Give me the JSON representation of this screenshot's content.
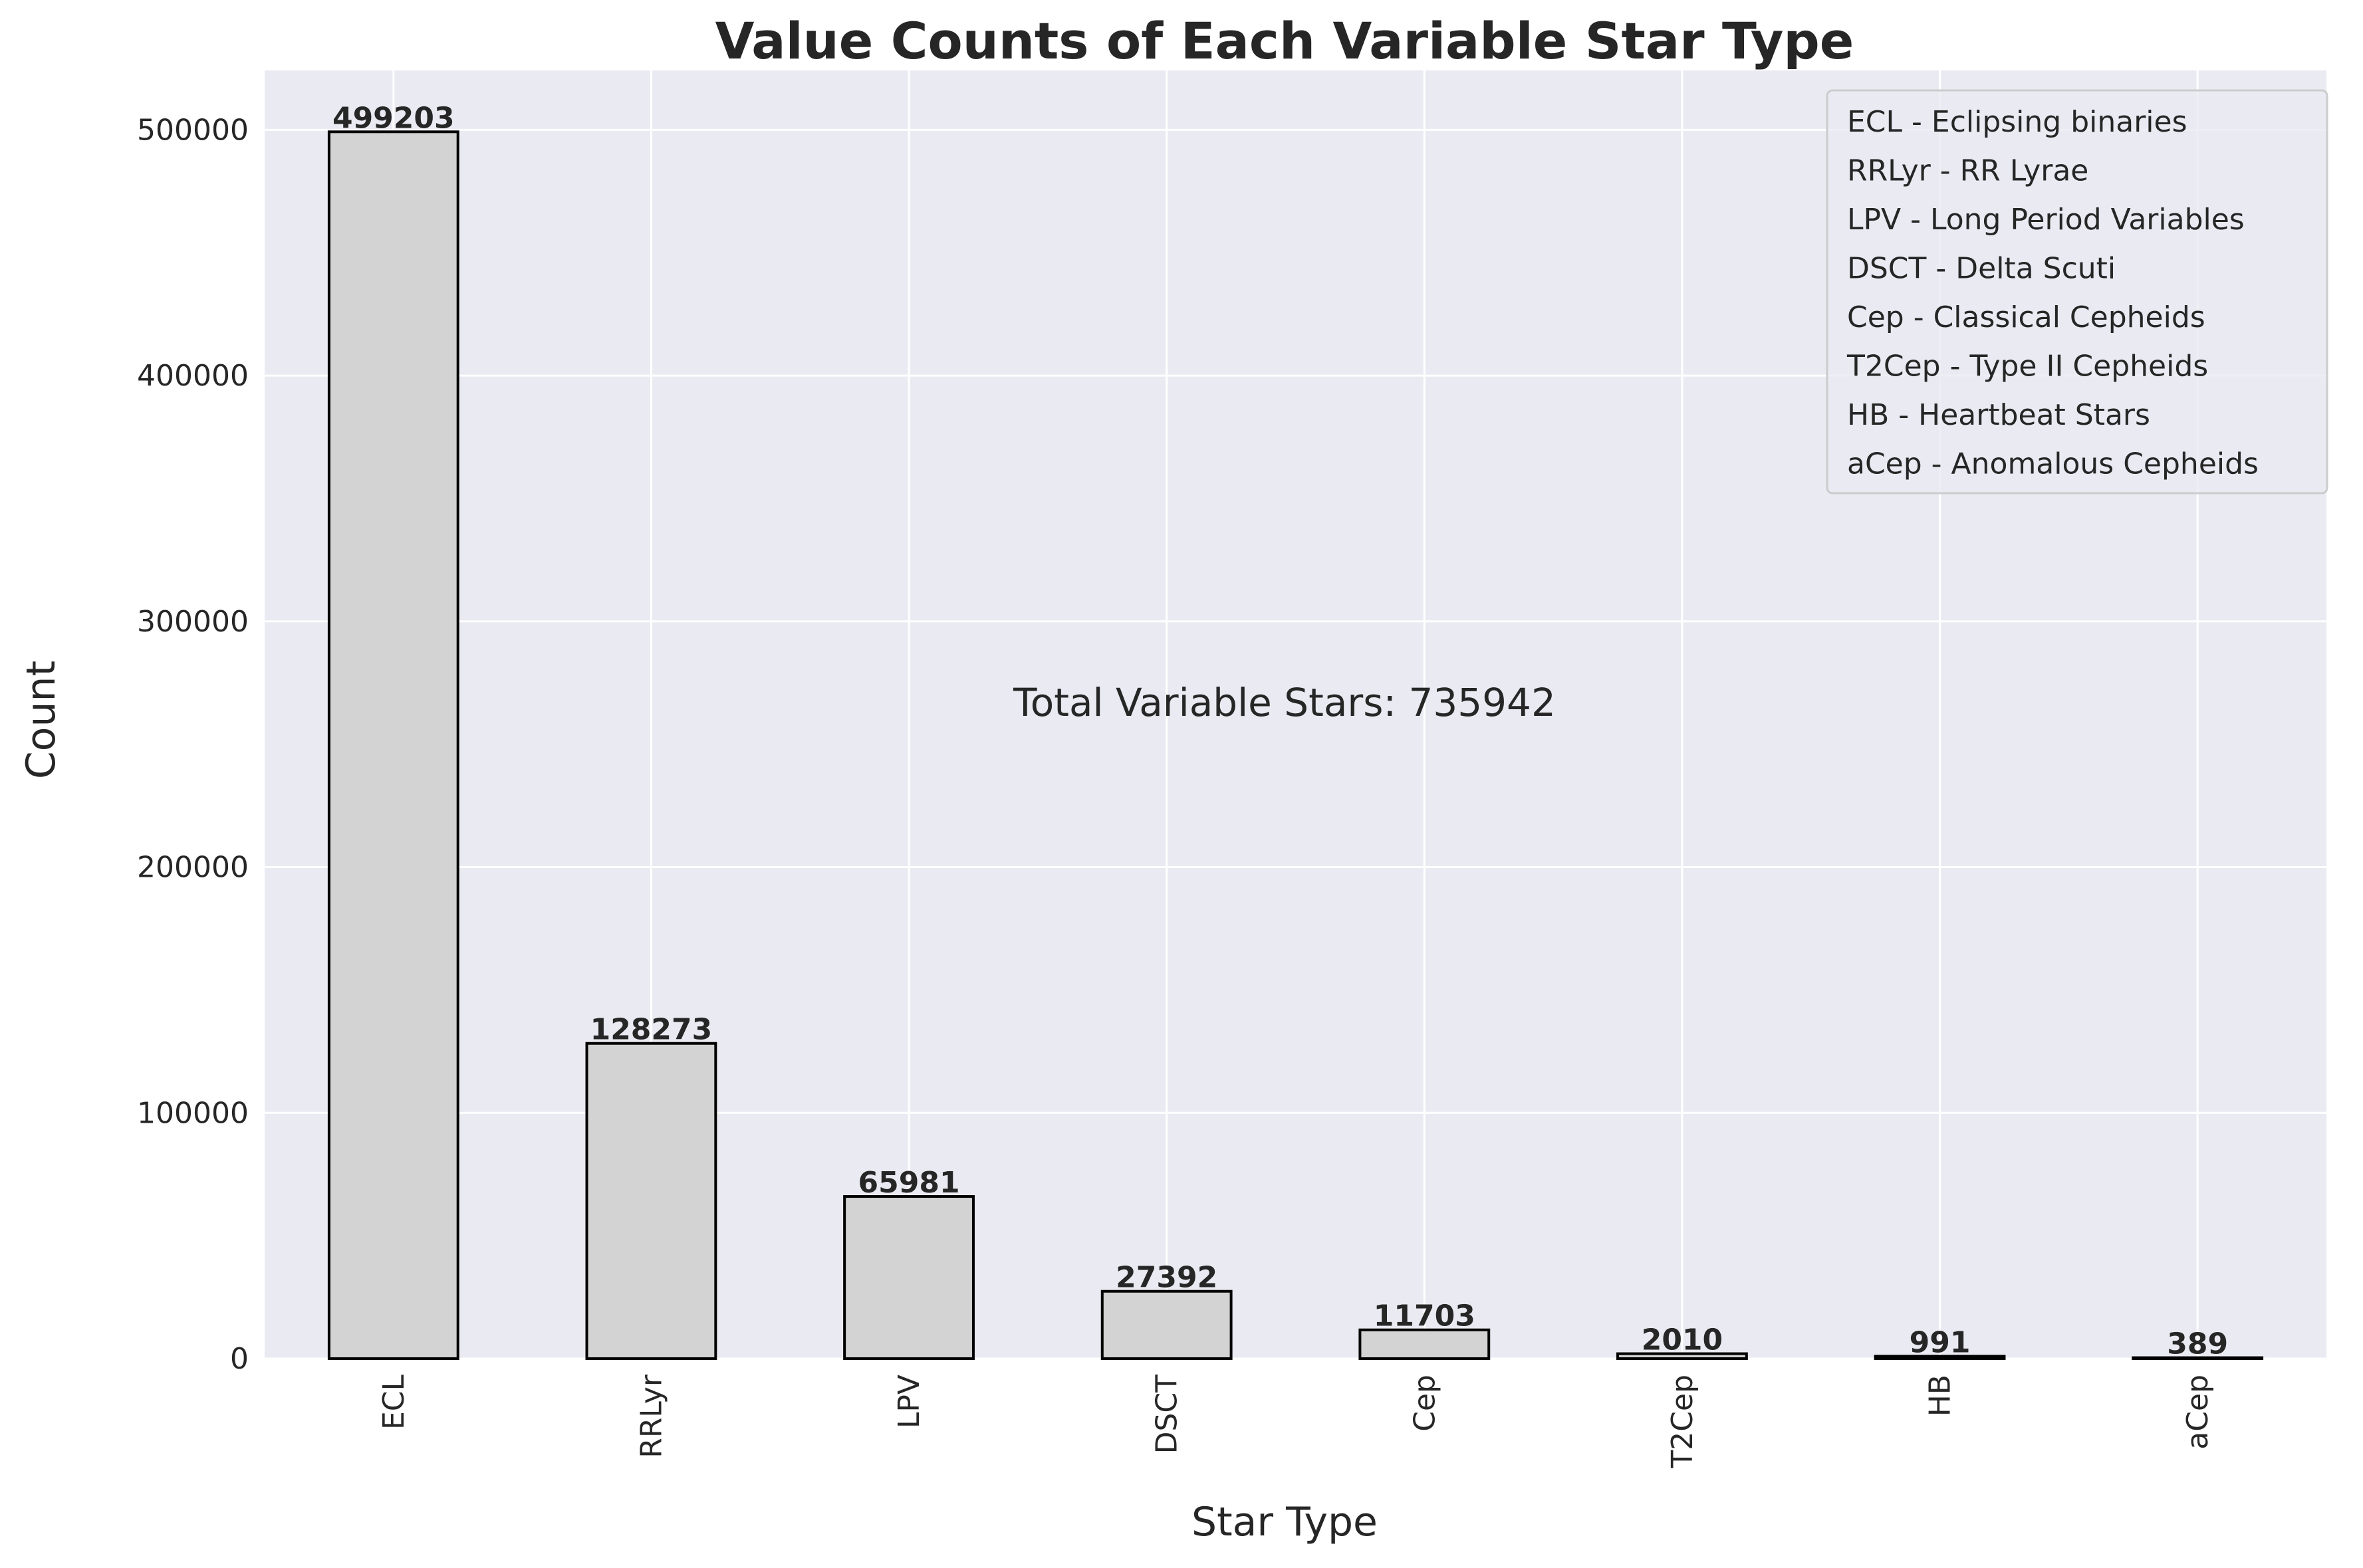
{
  "chart_data": {
    "type": "bar",
    "title": "Value Counts of Each Variable Star Type",
    "xlabel": "Star Type",
    "ylabel": "Count",
    "categories": [
      "ECL",
      "RRLyr",
      "LPV",
      "DSCT",
      "Cep",
      "T2Cep",
      "HB",
      "aCep"
    ],
    "values": [
      499203,
      128273,
      65981,
      27392,
      11703,
      2010,
      991,
      389
    ],
    "value_labels": [
      "499203",
      "128273",
      "65981",
      "27392",
      "11703",
      "2010",
      "991",
      "389"
    ],
    "ylim": [
      0,
      524163
    ],
    "yticks": [
      0,
      100000,
      200000,
      300000,
      400000,
      500000
    ],
    "ytick_labels": [
      "0",
      "100000",
      "200000",
      "300000",
      "400000",
      "500000"
    ],
    "grid": true,
    "legend_position": "top-right",
    "legend": [
      "ECL - Eclipsing binaries",
      "RRLyr - RR Lyrae",
      "LPV - Long Period Variables",
      "DSCT - Delta Scuti",
      "Cep - Classical Cepheids",
      "T2Cep - Type II Cepheids",
      "HB - Heartbeat Stars",
      "aCep - Anomalous Cepheids"
    ],
    "annotation": "Total Variable Stars: 735942",
    "colors": {
      "background": "#eaeaf2",
      "grid": "#ffffff",
      "bar_fill": "#d3d3d3",
      "bar_edge": "#000000",
      "text": "#262626"
    }
  }
}
